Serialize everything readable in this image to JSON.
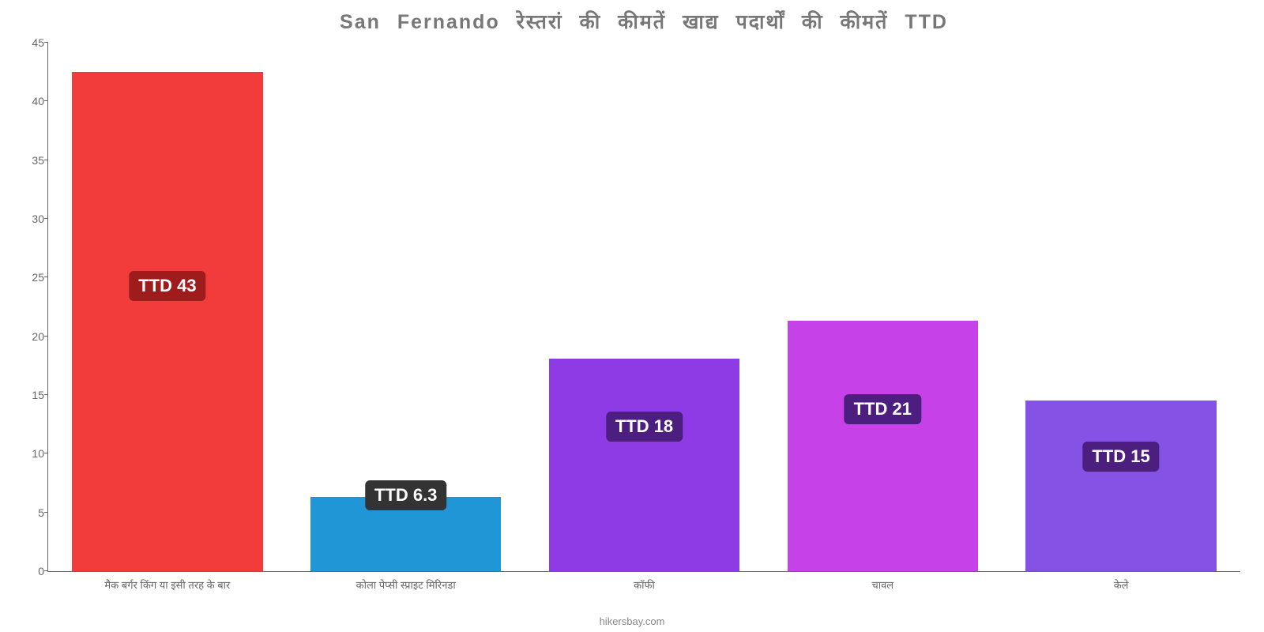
{
  "chart": {
    "type": "bar",
    "title": "San Fernando रेस्तरां की कीमतें खाद्य पदार्थों की कीमतें TTD",
    "title_fontsize": 25,
    "title_color": "#777777",
    "footer": "hikersbay.com",
    "footer_color": "#888888",
    "background_color": "#ffffff",
    "axis_color": "#666666",
    "ylim": [
      0,
      45
    ],
    "ytick_step": 5,
    "yticks": [
      "0",
      "5",
      "10",
      "15",
      "20",
      "25",
      "30",
      "35",
      "40",
      "45"
    ],
    "bar_width_pct": 16,
    "bar_gap_pct": 4,
    "bars": [
      {
        "category": "मैक बर्गर किंग या इसी तरह के बार",
        "value": 42.5,
        "color": "#f23b3b",
        "label_text": "TTD 43",
        "label_bg": "#9e1c1c",
        "label_y_value": 23
      },
      {
        "category": "कोला पेप्सी स्प्राइट मिरिनडा",
        "value": 6.3,
        "color": "#2196d6",
        "label_text": "TTD 6.3",
        "label_bg": "#333333",
        "label_y_value": 5.2
      },
      {
        "category": "कॉफी",
        "value": 18.1,
        "color": "#8e3be6",
        "label_text": "TTD 18",
        "label_bg": "#4b1e80",
        "label_y_value": 11
      },
      {
        "category": "चावल",
        "value": 21.3,
        "color": "#c642e8",
        "label_text": "TTD 21",
        "label_bg": "#4b1e80",
        "label_y_value": 12.5
      },
      {
        "category": "केले",
        "value": 14.5,
        "color": "#8552e6",
        "label_text": "TTD 15",
        "label_bg": "#4b1e80",
        "label_y_value": 8.5
      }
    ]
  }
}
